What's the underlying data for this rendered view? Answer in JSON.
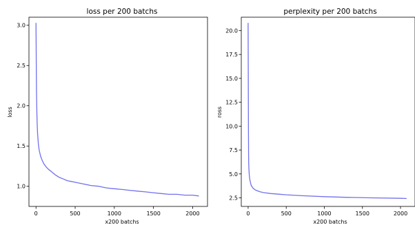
{
  "chart_data": [
    {
      "type": "line",
      "title": "loss per 200 batchs",
      "xlabel": "x200 batchs",
      "ylabel": "loss",
      "xlim": [
        -90,
        2190
      ],
      "ylim": [
        0.75,
        3.1
      ],
      "xticks": [
        0,
        500,
        1000,
        1500,
        2000
      ],
      "yticks": [
        1.0,
        1.5,
        2.0,
        2.5,
        3.0
      ],
      "ytick_labels": [
        "1.0",
        "1.5",
        "2.0",
        "2.5",
        "3.0"
      ],
      "grid": false,
      "series": [
        {
          "color": "#7070ee",
          "x": [
            0,
            3,
            6,
            10,
            15,
            20,
            30,
            40,
            60,
            80,
            100,
            130,
            160,
            200,
            250,
            300,
            350,
            400,
            450,
            500,
            600,
            700,
            800,
            900,
            1000,
            1100,
            1200,
            1300,
            1400,
            1500,
            1600,
            1700,
            1800,
            1900,
            2000,
            2080
          ],
          "y": [
            3.03,
            2.55,
            2.2,
            1.95,
            1.78,
            1.66,
            1.53,
            1.45,
            1.37,
            1.32,
            1.28,
            1.24,
            1.21,
            1.18,
            1.14,
            1.11,
            1.09,
            1.07,
            1.06,
            1.05,
            1.03,
            1.01,
            1.0,
            0.98,
            0.97,
            0.96,
            0.95,
            0.94,
            0.93,
            0.92,
            0.91,
            0.9,
            0.9,
            0.89,
            0.89,
            0.88
          ]
        }
      ]
    },
    {
      "type": "line",
      "title": "perplexity per 200 batchs",
      "xlabel": "x200 batchs",
      "ylabel": "ross",
      "xlim": [
        -90,
        2190
      ],
      "ylim": [
        1.6,
        21.4
      ],
      "xticks": [
        0,
        500,
        1000,
        1500,
        2000
      ],
      "yticks": [
        2.5,
        5.0,
        7.5,
        10.0,
        12.5,
        15.0,
        17.5,
        20.0
      ],
      "ytick_labels": [
        "2.5",
        "5.0",
        "7.5",
        "10.0",
        "12.5",
        "15.0",
        "17.5",
        "20.0"
      ],
      "grid": false,
      "series": [
        {
          "color": "#7070ee",
          "x": [
            0,
            2,
            4,
            6,
            8,
            10,
            15,
            20,
            30,
            40,
            60,
            80,
            100,
            150,
            200,
            300,
            400,
            500,
            700,
            1000,
            1300,
            1600,
            2000,
            2080
          ],
          "y": [
            20.8,
            14.0,
            9.5,
            7.0,
            6.0,
            5.5,
            4.9,
            4.5,
            4.1,
            3.8,
            3.55,
            3.4,
            3.3,
            3.15,
            3.05,
            2.95,
            2.88,
            2.82,
            2.72,
            2.62,
            2.55,
            2.5,
            2.45,
            2.43
          ]
        }
      ]
    }
  ]
}
